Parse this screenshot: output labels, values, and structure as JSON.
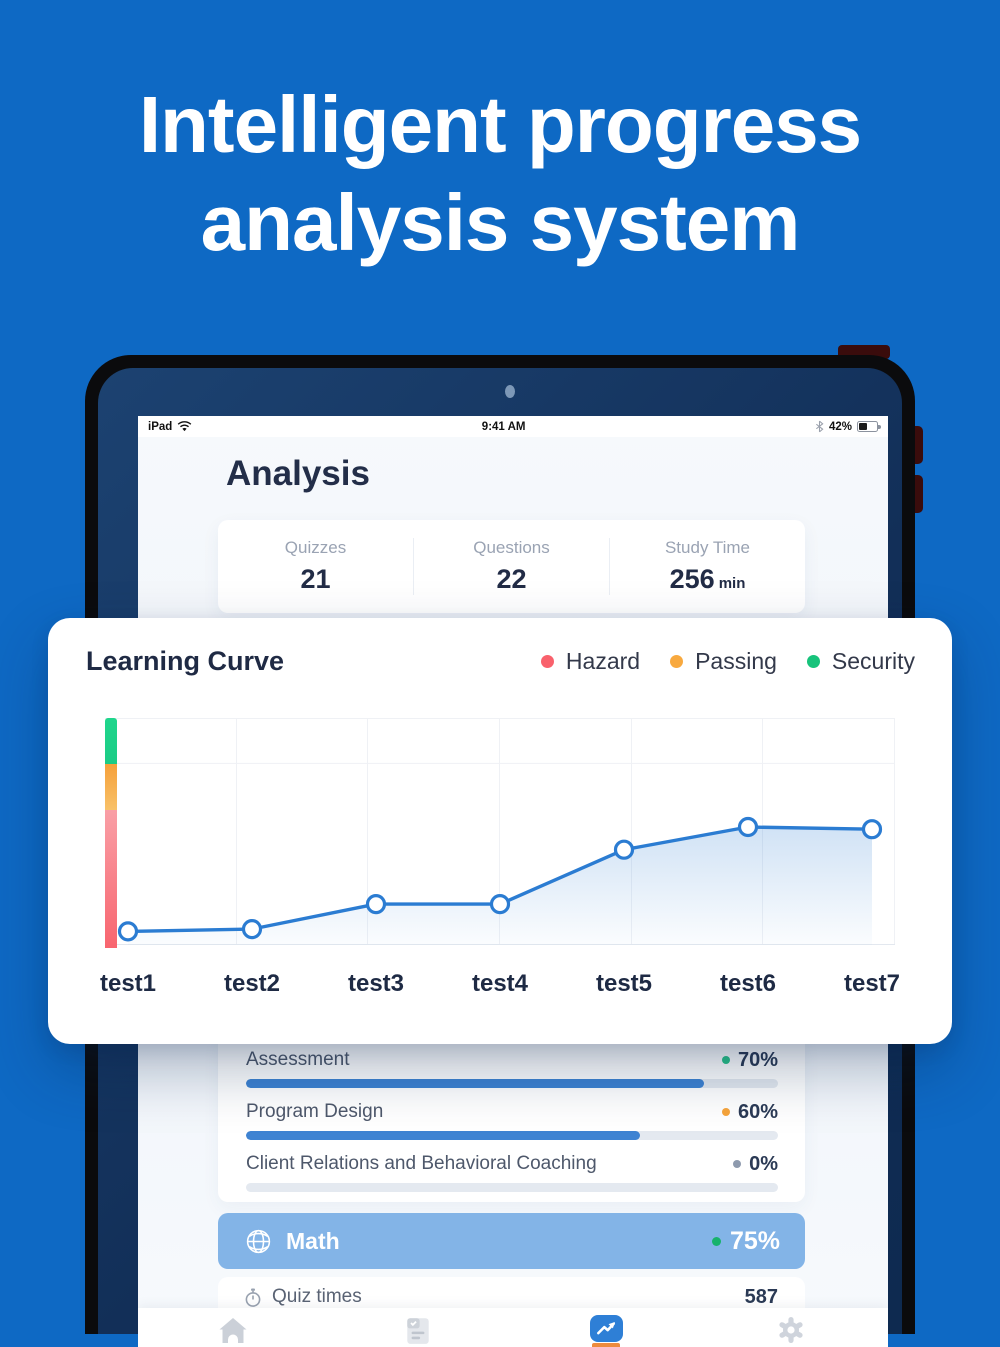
{
  "hero": {
    "title_line1": "Intelligent progress",
    "title_line2": "analysis system"
  },
  "device": {
    "status_bar": {
      "carrier": "iPad",
      "time": "9:41 AM",
      "battery": "42%"
    },
    "header": {
      "title": "Analysis"
    },
    "stats": [
      {
        "label": "Quizzes",
        "value": "21",
        "unit": ""
      },
      {
        "label": "Questions",
        "value": "22",
        "unit": ""
      },
      {
        "label": "Study Time",
        "value": "256",
        "unit": "min"
      }
    ],
    "progress": {
      "bar_color": "#3E83D2",
      "track_color": "#E4E9F0",
      "rows": [
        {
          "label": "Assessment",
          "value": "70%",
          "dot_color": "#2BC48A",
          "fill_percent": 86
        },
        {
          "label": "Program Design",
          "value": "60%",
          "dot_color": "#F7A53C",
          "fill_percent": 74
        },
        {
          "label": "Client Relations and Behavioral Coaching",
          "value": "0%",
          "dot_color": "#8E9AAE",
          "fill_percent": 0
        }
      ]
    },
    "subject": {
      "label": "Math",
      "value": "75%",
      "dot_color": "#17B26B",
      "bg_color": "#83B4E7"
    },
    "quiz_times": {
      "label": "Quiz times",
      "value": "587"
    },
    "tabbar": {
      "items": [
        {
          "name": "home",
          "active": false
        },
        {
          "name": "tests",
          "active": false
        },
        {
          "name": "analysis",
          "active": true
        },
        {
          "name": "settings",
          "active": false
        }
      ],
      "active_color": "#2E7FD6",
      "underline_color": "#ED8B3E"
    }
  },
  "overlay": {
    "title": "Learning Curve",
    "legend": [
      {
        "label": "Hazard",
        "color": "#F9616C"
      },
      {
        "label": "Passing",
        "color": "#F8A93F"
      },
      {
        "label": "Security",
        "color": "#17C37B"
      }
    ]
  },
  "chart_data": {
    "type": "line",
    "title": "Learning Curve",
    "categories": [
      "test1",
      "test2",
      "test3",
      "test4",
      "test5",
      "test6",
      "test7"
    ],
    "series": [
      {
        "name": "learning-curve",
        "values": [
          6,
          7,
          18,
          18,
          42,
          52,
          51
        ]
      }
    ],
    "xlabel": "",
    "ylabel": "",
    "ylim": [
      0,
      100
    ],
    "grid": true,
    "legend_position": "top-right",
    "legend": [
      "Hazard",
      "Passing",
      "Security"
    ],
    "line_color": "#2B7CD2",
    "area_fill_top": "rgba(43,124,210,0.22)",
    "area_fill_bottom": "rgba(43,124,210,0.02)",
    "y_axis_bands": [
      {
        "name": "Security",
        "range": [
          80,
          100
        ],
        "color_top": "#1FD68C",
        "color_bottom": "#1BCB85"
      },
      {
        "name": "Passing",
        "range": [
          60,
          80
        ],
        "color_top": "#F5A03A",
        "color_bottom": "#F8C168"
      },
      {
        "name": "Hazard",
        "range": [
          0,
          60
        ],
        "color_top": "#F99FA6",
        "color_bottom": "#F8656F"
      }
    ]
  }
}
